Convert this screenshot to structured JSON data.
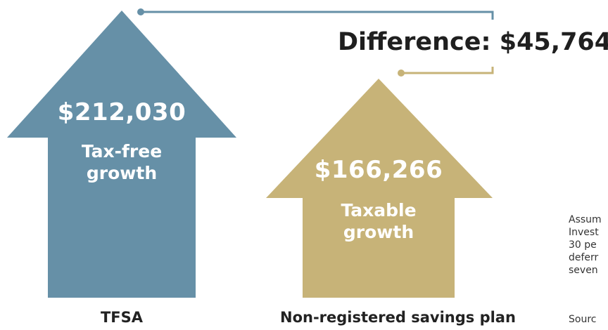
{
  "colors": {
    "tfsa_arrow": "#6690a7",
    "taxable_arrow": "#c7b378",
    "connector": "#6690a7",
    "connector_taxable": "#c7b378"
  },
  "difference": {
    "text": "Difference: $45,764"
  },
  "tfsa": {
    "amount": "$212,030",
    "growth_line1": "Tax-free",
    "growth_line2": "growth",
    "caption": "TFSA"
  },
  "non_registered": {
    "amount": "$166,266",
    "growth_line1": "Taxable",
    "growth_line2": "growth",
    "caption": "Non-registered savings plan"
  },
  "note": {
    "lines": [
      "Assum",
      "Invest",
      "30 pe",
      "deferr",
      "seven"
    ]
  },
  "source": {
    "text": "Sourc"
  }
}
